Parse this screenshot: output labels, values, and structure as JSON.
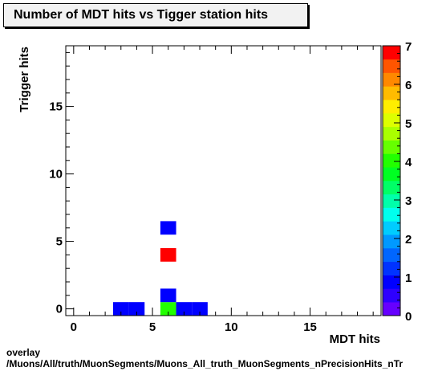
{
  "chart_data": {
    "type": "heatmap",
    "title": "Number of MDT hits vs Tigger station hits",
    "xlabel": "MDT hits",
    "ylabel": "Trigger hits",
    "xlim": [
      -0.5,
      19.5
    ],
    "ylim": [
      -0.5,
      19.5
    ],
    "xticks": [
      0,
      5,
      10,
      15
    ],
    "yticks": [
      0,
      5,
      10,
      15
    ],
    "zlim": [
      0,
      7
    ],
    "zticks": [
      0,
      1,
      2,
      3,
      4,
      5,
      6,
      7
    ],
    "palette": [
      "#6600ff",
      "#2e00ff",
      "#0000ff",
      "#0033ff",
      "#0066ff",
      "#0099ff",
      "#00ccff",
      "#00ffee",
      "#00ffaa",
      "#00ff66",
      "#00ff22",
      "#22ff00",
      "#66ff00",
      "#aaff00",
      "#ddff00",
      "#ffee00",
      "#ffbb00",
      "#ff8800",
      "#ff5500",
      "#ff0000"
    ],
    "cells": [
      {
        "x": 3,
        "y": 0,
        "value": 1
      },
      {
        "x": 4,
        "y": 0,
        "value": 1
      },
      {
        "x": 6,
        "y": 0,
        "value": 4
      },
      {
        "x": 6,
        "y": 1,
        "value": 1
      },
      {
        "x": 6,
        "y": 4,
        "value": 7
      },
      {
        "x": 6,
        "y": 6,
        "value": 1
      },
      {
        "x": 7,
        "y": 0,
        "value": 1
      },
      {
        "x": 8,
        "y": 0,
        "value": 1
      }
    ]
  },
  "footer": {
    "line1": "overlay",
    "line2": "/Muons/All/truth/MuonSegments/Muons_All_truth_MuonSegments_nPrecisionHits_nTr"
  }
}
